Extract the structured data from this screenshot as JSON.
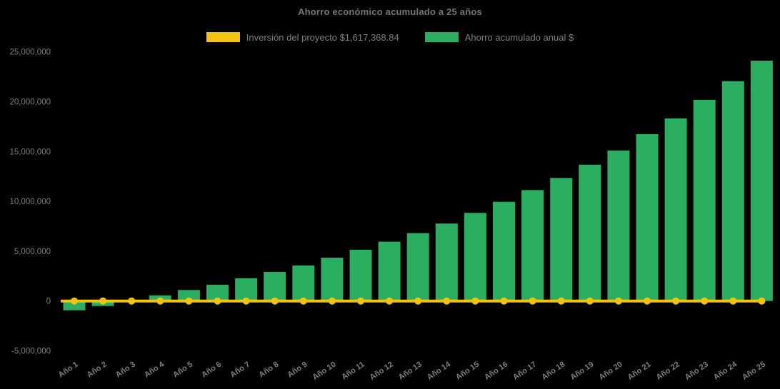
{
  "header": {
    "title": "Ahorro económico acumulado a 25 años"
  },
  "legend": {
    "items": [
      {
        "id": "investment",
        "label": "Inversión del proyecto $1,617,368.84",
        "color": "#F2C311"
      },
      {
        "id": "savings",
        "label": "Ahorro acumulado anual $",
        "color": "#2BAE60"
      }
    ]
  },
  "chart_data": {
    "type": "bar",
    "title": "Ahorro económico acumulado a 25 años",
    "categories": [
      "Año 1",
      "Año 2",
      "Año 3",
      "Año 4",
      "Año 5",
      "Año 6",
      "Año 7",
      "Año 8",
      "Año 9",
      "Año 10",
      "Año 11",
      "Año 12",
      "Año 13",
      "Año 14",
      "Año 15",
      "Año 16",
      "Año 17",
      "Año 18",
      "Año 19",
      "Año 20",
      "Año 21",
      "Año 22",
      "Año 23",
      "Año 24",
      "Año 25"
    ],
    "series": [
      {
        "name": "Ahorro acumulado anual $",
        "type": "bar",
        "color": "#2BAE60",
        "values": [
          -930000,
          -500000,
          30000,
          550000,
          1100000,
          1630000,
          2270000,
          2920000,
          3560000,
          4350000,
          5140000,
          5950000,
          6810000,
          7770000,
          8840000,
          9960000,
          11130000,
          12350000,
          13680000,
          15110000,
          16740000,
          18320000,
          20180000,
          22060000,
          24120000
        ]
      },
      {
        "name": "Inversión del proyecto $1,617,368.84",
        "type": "line",
        "color": "#F2C311",
        "marker": "circle",
        "constant_value": 0
      }
    ],
    "xlabel": "",
    "ylabel": "",
    "ylim": [
      -5000000,
      25000000
    ],
    "y_ticks": [
      {
        "label": "25,000,000",
        "value": 25000000
      },
      {
        "label": "20,000,000",
        "value": 20000000
      },
      {
        "label": "15,000,000",
        "value": 15000000
      },
      {
        "label": "10,000,000",
        "value": 10000000
      },
      {
        "label": "5,000,000",
        "value": 5000000
      },
      {
        "label": "0",
        "value": 0
      },
      {
        "label": "-5,000,000",
        "value": -5000000
      }
    ],
    "grid": false,
    "legend_position": "top",
    "x_tick_rotation": -34,
    "text_color": "#7F7F7F",
    "background": "#000000"
  }
}
